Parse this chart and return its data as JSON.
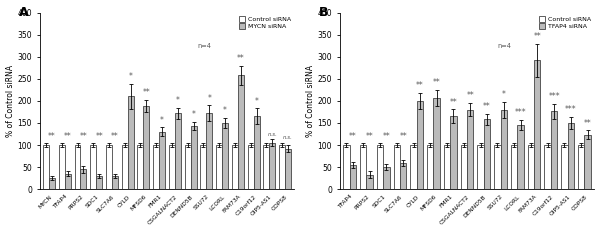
{
  "panel_A": {
    "label": "A",
    "legend_siRNA": "MYCN siRNA",
    "categories": [
      "MYCN",
      "TFAP4",
      "PRPS2",
      "SDC1",
      "SLC7A6",
      "CYLD",
      "MFSD6",
      "FMR1",
      "CSGALNACT2",
      "DENND5B",
      "SSU72",
      "LCORL",
      "FAM73A",
      "C19orf12",
      "OIP5-AS1",
      "COPS8"
    ],
    "control": [
      100,
      100,
      100,
      100,
      100,
      100,
      100,
      100,
      100,
      100,
      100,
      100,
      100,
      100,
      100,
      100
    ],
    "treatment": [
      25,
      35,
      45,
      30,
      30,
      210,
      188,
      130,
      172,
      143,
      172,
      150,
      258,
      165,
      105,
      92
    ],
    "control_err": [
      4,
      4,
      4,
      4,
      4,
      5,
      5,
      5,
      5,
      5,
      5,
      5,
      5,
      5,
      5,
      5
    ],
    "treatment_err": [
      5,
      6,
      8,
      4,
      4,
      28,
      14,
      10,
      12,
      10,
      18,
      12,
      22,
      18,
      8,
      7
    ],
    "significance": [
      "**",
      "**",
      "**",
      "**",
      "**",
      "*",
      "**",
      "*",
      "*",
      "*",
      "*",
      "*",
      "**",
      "*",
      "n.s.",
      "n.s."
    ],
    "sig_above_treat": [
      true,
      true,
      true,
      true,
      true,
      true,
      true,
      true,
      true,
      true,
      true,
      true,
      true,
      true,
      true,
      true
    ]
  },
  "panel_B": {
    "label": "B",
    "legend_siRNA": "TFAP4 siRNA",
    "categories": [
      "TFAP4",
      "PRPS2",
      "SDC1",
      "SLC7A6",
      "CYLD",
      "MFSD6",
      "FMR1",
      "CSGALNACT2",
      "DENND5B",
      "SSU72",
      "LCORL",
      "FAM73A",
      "C19orf12",
      "OIP5-AS1",
      "COPS8"
    ],
    "control": [
      100,
      100,
      100,
      100,
      100,
      100,
      100,
      100,
      100,
      100,
      100,
      100,
      100,
      100,
      100
    ],
    "treatment": [
      55,
      33,
      50,
      60,
      200,
      207,
      165,
      180,
      158,
      180,
      145,
      292,
      176,
      150,
      123
    ],
    "control_err": [
      4,
      4,
      4,
      4,
      5,
      5,
      5,
      5,
      5,
      5,
      5,
      5,
      5,
      5,
      5
    ],
    "treatment_err": [
      7,
      7,
      7,
      7,
      18,
      18,
      16,
      15,
      12,
      18,
      12,
      38,
      18,
      14,
      10
    ],
    "significance": [
      "**",
      "**",
      "**",
      "**",
      "**",
      "**",
      "**",
      "**",
      "**",
      "*",
      "***",
      "**",
      "***",
      "***",
      "**"
    ],
    "sig_above_treat": [
      true,
      true,
      true,
      true,
      true,
      true,
      true,
      true,
      true,
      true,
      true,
      true,
      true,
      true,
      true
    ]
  },
  "ylabel": "% of Control siRNA",
  "ylim": [
    0,
    400
  ],
  "yticks": [
    0,
    50,
    100,
    150,
    200,
    250,
    300,
    350,
    400
  ],
  "n_label": "n=4",
  "control_color": "#ffffff",
  "treatment_color": "#bbbbbb",
  "bar_edge_color": "#444444",
  "bar_width": 0.38,
  "fig_bg": "#ffffff"
}
